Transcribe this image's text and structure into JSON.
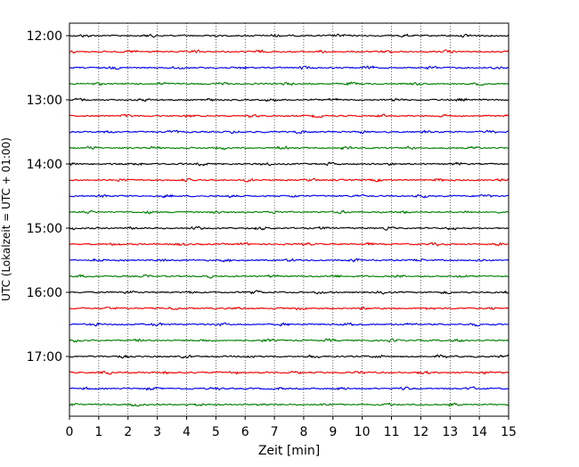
{
  "chart_data": {
    "type": "line",
    "title": "",
    "xlabel": "Zeit  [min]",
    "ylabel": "UTC (Lokalzeit = UTC + 01:00)",
    "xlim": [
      0,
      15
    ],
    "x_ticks": [
      0,
      1,
      2,
      3,
      4,
      5,
      6,
      7,
      8,
      9,
      10,
      11,
      12,
      13,
      14,
      15
    ],
    "y_tick_labels": [
      "12:00",
      "13:00",
      "14:00",
      "15:00",
      "16:00",
      "17:00"
    ],
    "grid": "vertical dotted lines at each minute",
    "legend": "none",
    "trace_interval_min": 15,
    "trace_start": "12:00",
    "trace_end": "17:45",
    "trace_count": 24,
    "trace_colors": [
      "#000000",
      "#ff0000",
      "#0000ff",
      "#008000"
    ],
    "series": [
      {
        "start": "12:00",
        "color": "#000000"
      },
      {
        "start": "12:15",
        "color": "#ff0000"
      },
      {
        "start": "12:30",
        "color": "#0000ff"
      },
      {
        "start": "12:45",
        "color": "#008000"
      },
      {
        "start": "13:00",
        "color": "#000000"
      },
      {
        "start": "13:15",
        "color": "#ff0000"
      },
      {
        "start": "13:30",
        "color": "#0000ff"
      },
      {
        "start": "13:45",
        "color": "#008000"
      },
      {
        "start": "14:00",
        "color": "#000000"
      },
      {
        "start": "14:15",
        "color": "#ff0000"
      },
      {
        "start": "14:30",
        "color": "#0000ff"
      },
      {
        "start": "14:45",
        "color": "#008000"
      },
      {
        "start": "15:00",
        "color": "#000000"
      },
      {
        "start": "15:15",
        "color": "#ff0000"
      },
      {
        "start": "15:30",
        "color": "#0000ff"
      },
      {
        "start": "15:45",
        "color": "#008000"
      },
      {
        "start": "16:00",
        "color": "#000000"
      },
      {
        "start": "16:15",
        "color": "#ff0000"
      },
      {
        "start": "16:30",
        "color": "#0000ff"
      },
      {
        "start": "16:45",
        "color": "#008000"
      },
      {
        "start": "17:00",
        "color": "#000000"
      },
      {
        "start": "17:15",
        "color": "#ff0000"
      },
      {
        "start": "17:30",
        "color": "#0000ff"
      },
      {
        "start": "17:45",
        "color": "#008000"
      }
    ]
  }
}
